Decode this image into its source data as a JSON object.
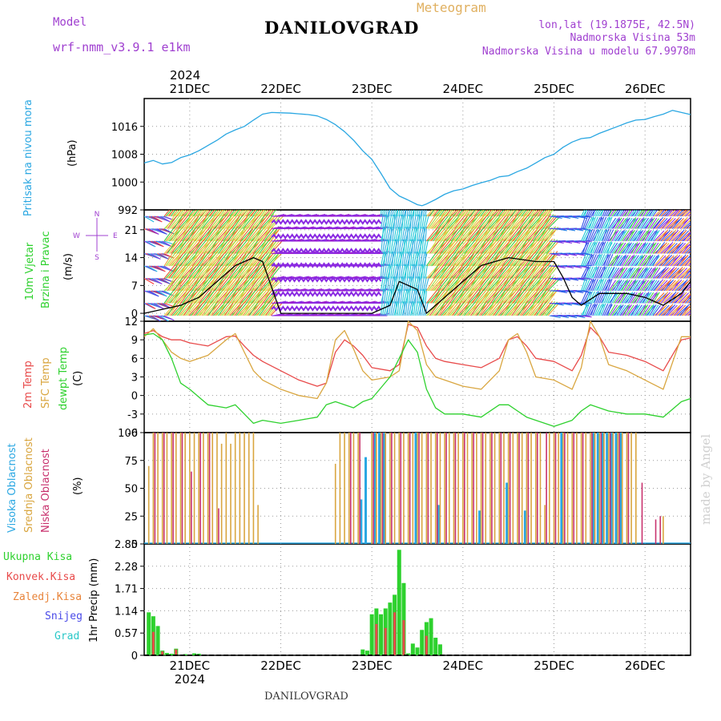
{
  "header": {
    "model_label": "Model",
    "model_name": "wrf-nmm_v3.9.1 e1km",
    "title": "Meteogram",
    "city": "DANILOVGRAD",
    "lonlat": "lon,lat (19.1875E, 42.5N)",
    "elevation": "Nadmorska Visina 53m",
    "model_elevation": "Nadmorska Visina u modelu 67.9978m",
    "watermark": "made by Angel",
    "city_bottom": "DANILOVGRAD"
  },
  "colors": {
    "pressure": "#2aa7e2",
    "temp2m": "#e84a4a",
    "sfc": "#d9a640",
    "dewpt": "#2ed12e",
    "cloud_high": "#2aa7e2",
    "cloud_mid": "#d9a640",
    "cloud_low": "#c8326e",
    "precip_total": "#2ed12e",
    "precip_conv": "#e84a4a",
    "precip_frozen": "#e8843a",
    "precip_snow": "#4a4ae8",
    "precip_hail": "#2ac8c8"
  },
  "chart_data": [
    {
      "type": "line",
      "panel": "pressure",
      "y_title": "Pritisak na nivou mora",
      "unit_label": "(hPa)",
      "x_date_year_top": "2024",
      "x_dates": [
        "21DEC",
        "22DEC",
        "23DEC",
        "24DEC",
        "25DEC",
        "26DEC"
      ],
      "x_range_days": [
        20.5,
        26.5
      ],
      "ylim": [
        992,
        1024
      ],
      "yticks": [
        "992",
        "1000",
        "1008",
        "1016"
      ],
      "x": [
        20.5,
        20.6,
        20.7,
        20.8,
        20.9,
        21.0,
        21.1,
        21.2,
        21.3,
        21.4,
        21.5,
        21.6,
        21.7,
        21.8,
        21.9,
        22.0,
        22.1,
        22.2,
        22.3,
        22.4,
        22.5,
        22.6,
        22.7,
        22.8,
        22.9,
        23.0,
        23.1,
        23.2,
        23.3,
        23.4,
        23.5,
        23.55,
        23.6,
        23.7,
        23.8,
        23.9,
        24.0,
        24.1,
        24.2,
        24.3,
        24.4,
        24.5,
        24.6,
        24.7,
        24.8,
        24.9,
        25.0,
        25.1,
        25.2,
        25.3,
        25.4,
        25.5,
        25.6,
        25.7,
        25.8,
        25.9,
        26.0,
        26.1,
        26.2,
        26.3,
        26.4,
        26.5
      ],
      "values": [
        1005.5,
        1006.2,
        1005.2,
        1005.6,
        1007.0,
        1007.8,
        1009.0,
        1010.5,
        1012.0,
        1013.8,
        1015.0,
        1016.0,
        1017.8,
        1019.5,
        1020.0,
        1019.9,
        1019.8,
        1019.6,
        1019.4,
        1019.0,
        1018.0,
        1016.5,
        1014.5,
        1012.0,
        1009.0,
        1006.5,
        1002.5,
        998.2,
        996.0,
        994.8,
        993.5,
        993.2,
        993.7,
        995.0,
        996.5,
        997.5,
        998.0,
        999.0,
        999.8,
        1000.5,
        1001.5,
        1001.8,
        1003.0,
        1004.0,
        1005.5,
        1007.0,
        1008.0,
        1010.0,
        1011.5,
        1012.5,
        1012.8,
        1014.0,
        1015.0,
        1016.0,
        1017.0,
        1017.8,
        1018.0,
        1018.8,
        1019.5,
        1020.6,
        1020.0,
        1019.4
      ]
    },
    {
      "type": "line",
      "panel": "wind",
      "y_title": [
        "10m Vjetar",
        "Brzina i Pravac"
      ],
      "unit_label": "(m/s)",
      "compass": {
        "n": "N",
        "s": "S",
        "e": "E",
        "w": "W"
      },
      "ylim": [
        -2,
        26
      ],
      "yticks": [
        "0",
        "7",
        "14",
        "21"
      ],
      "x": [
        20.5,
        20.7,
        20.9,
        21.1,
        21.3,
        21.5,
        21.7,
        21.8,
        22.0,
        22.5,
        23.0,
        23.2,
        23.3,
        23.5,
        23.6,
        23.7,
        23.9,
        24.2,
        24.5,
        24.8,
        25.0,
        25.1,
        25.2,
        25.3,
        25.5,
        25.8,
        26.0,
        26.2,
        26.4,
        26.5
      ],
      "values": [
        0,
        1,
        2,
        4,
        8,
        12,
        14,
        13,
        0,
        0,
        0,
        2,
        8,
        6,
        0,
        2,
        6,
        12,
        14,
        13,
        13,
        9,
        4,
        2,
        5,
        5,
        4,
        2,
        5,
        8
      ]
    },
    {
      "type": "line",
      "panel": "temperature",
      "y_title": [
        "2m Temp",
        "SFC Temp",
        "dewpt Temp"
      ],
      "unit_label": "(C)",
      "ylim": [
        -6,
        12
      ],
      "yticks": [
        "-6",
        "-3",
        "0",
        "3",
        "6",
        "9",
        "12"
      ],
      "series": [
        {
          "name": "2m Temp",
          "x": [
            20.5,
            20.6,
            20.7,
            20.8,
            20.9,
            21.0,
            21.2,
            21.4,
            21.5,
            21.6,
            21.7,
            21.8,
            22.0,
            22.2,
            22.4,
            22.5,
            22.6,
            22.7,
            22.8,
            22.9,
            23.0,
            23.2,
            23.3,
            23.4,
            23.5,
            23.6,
            23.7,
            23.8,
            24.0,
            24.2,
            24.4,
            24.5,
            24.6,
            24.7,
            24.8,
            25.0,
            25.2,
            25.3,
            25.4,
            25.5,
            25.6,
            25.8,
            26.0,
            26.2,
            26.4,
            26.5
          ],
          "values": [
            10.0,
            10.5,
            9.5,
            9.0,
            9.0,
            8.5,
            8.0,
            9.5,
            9.6,
            8.0,
            6.5,
            5.5,
            4.0,
            2.5,
            1.5,
            2.0,
            7.0,
            9.0,
            8.0,
            6.5,
            4.5,
            4.0,
            5.0,
            11.5,
            11.0,
            8.0,
            6.0,
            5.5,
            5.0,
            4.5,
            6.0,
            9.0,
            9.5,
            8.0,
            6.0,
            5.5,
            4.0,
            6.5,
            11.0,
            9.5,
            7.0,
            6.5,
            5.5,
            4.0,
            9.0,
            9.3
          ]
        },
        {
          "name": "SFC Temp",
          "x": [
            20.5,
            20.6,
            20.7,
            20.8,
            20.9,
            21.0,
            21.2,
            21.4,
            21.5,
            21.6,
            21.7,
            21.8,
            22.0,
            22.2,
            22.4,
            22.5,
            22.6,
            22.7,
            22.8,
            22.9,
            23.0,
            23.2,
            23.3,
            23.4,
            23.5,
            23.6,
            23.7,
            23.8,
            24.0,
            24.2,
            24.4,
            24.5,
            24.6,
            24.7,
            24.8,
            25.0,
            25.2,
            25.3,
            25.4,
            25.5,
            25.6,
            25.8,
            26.0,
            26.2,
            26.4,
            26.5
          ],
          "values": [
            9.5,
            10.8,
            9.0,
            7.0,
            6.0,
            5.5,
            6.5,
            9.0,
            10.0,
            7.0,
            4.0,
            2.5,
            1.0,
            0.0,
            -0.5,
            2.0,
            9.0,
            10.5,
            7.5,
            4.0,
            2.5,
            3.0,
            4.0,
            12.0,
            10.5,
            5.0,
            3.0,
            2.5,
            1.5,
            1.0,
            4.0,
            9.0,
            10.0,
            7.0,
            3.0,
            2.5,
            1.0,
            4.5,
            12.0,
            9.5,
            5.0,
            4.0,
            2.5,
            1.0,
            9.5,
            9.5
          ]
        },
        {
          "name": "dewpt Temp",
          "x": [
            20.5,
            20.6,
            20.7,
            20.8,
            20.9,
            21.0,
            21.2,
            21.4,
            21.5,
            21.6,
            21.7,
            21.8,
            22.0,
            22.2,
            22.4,
            22.5,
            22.6,
            22.7,
            22.8,
            22.9,
            23.0,
            23.2,
            23.3,
            23.4,
            23.5,
            23.6,
            23.7,
            23.8,
            24.0,
            24.2,
            24.4,
            24.5,
            24.6,
            24.7,
            24.8,
            25.0,
            25.2,
            25.3,
            25.4,
            25.5,
            25.6,
            25.8,
            26.0,
            26.2,
            26.4,
            26.5
          ],
          "values": [
            9.8,
            10.0,
            9.0,
            6.0,
            2.0,
            1.0,
            -1.5,
            -2.0,
            -1.5,
            -3.0,
            -4.5,
            -4.0,
            -4.5,
            -4.0,
            -3.5,
            -1.5,
            -1.0,
            -1.5,
            -2.0,
            -1.0,
            -0.5,
            3.0,
            6.0,
            9.0,
            7.0,
            1.0,
            -2.0,
            -3.0,
            -3.0,
            -3.5,
            -1.5,
            -1.5,
            -2.5,
            -3.5,
            -4.0,
            -5.0,
            -4.0,
            -2.5,
            -1.5,
            -2.0,
            -2.5,
            -3.0,
            -3.0,
            -3.5,
            -1.0,
            -0.5
          ]
        }
      ]
    },
    {
      "type": "bar",
      "panel": "clouds",
      "y_title": [
        "Visoka Oblacnost",
        "Srednja Oblacnost",
        "Niska Oblacnost"
      ],
      "unit_label": "(%)",
      "ylim": [
        0,
        100
      ],
      "yticks": [
        "0",
        "25",
        "50",
        "75",
        "100"
      ],
      "series": [
        {
          "name": "Visoka Oblacnost",
          "x": [
            22.9,
            22.95,
            23.05,
            23.1,
            23.15,
            23.5,
            23.75,
            24.2,
            24.5,
            24.7,
            25.1,
            25.45,
            25.5,
            25.55,
            25.6,
            25.65,
            25.7,
            25.75
          ],
          "values": [
            40,
            78,
            100,
            100,
            100,
            100,
            35,
            30,
            55,
            30,
            100,
            100,
            100,
            100,
            100,
            100,
            100,
            100
          ]
        },
        {
          "name": "Srednja Oblacnost",
          "x": [
            20.55,
            20.6,
            20.65,
            20.7,
            20.75,
            20.8,
            20.85,
            20.9,
            20.95,
            21.0,
            21.05,
            21.1,
            21.15,
            21.2,
            21.25,
            21.3,
            21.35,
            21.4,
            21.45,
            21.5,
            21.55,
            21.6,
            21.65,
            21.7,
            21.75,
            22.6,
            22.65,
            22.7,
            22.75,
            22.8,
            22.85,
            23.0,
            23.05,
            23.1,
            23.15,
            23.2,
            23.25,
            23.3,
            23.35,
            23.4,
            23.45,
            23.5,
            23.55,
            23.6,
            23.65,
            23.7,
            23.75,
            23.8,
            23.85,
            23.9,
            23.95,
            24.0,
            24.05,
            24.1,
            24.15,
            24.2,
            24.25,
            24.3,
            24.35,
            24.4,
            24.45,
            24.5,
            24.55,
            24.6,
            24.65,
            24.7,
            24.75,
            24.8,
            24.85,
            24.9,
            24.95,
            25.0,
            25.05,
            25.1,
            25.15,
            25.2,
            25.25,
            25.3,
            25.35,
            25.4,
            25.45,
            25.5,
            25.55,
            25.6,
            25.65,
            25.7,
            25.75,
            25.8,
            25.85,
            25.9,
            26.2
          ],
          "values": [
            70,
            100,
            100,
            100,
            100,
            100,
            100,
            100,
            100,
            100,
            100,
            100,
            100,
            100,
            100,
            100,
            90,
            100,
            90,
            100,
            100,
            100,
            100,
            100,
            35,
            72,
            100,
            100,
            100,
            100,
            100,
            100,
            100,
            100,
            100,
            100,
            100,
            100,
            100,
            100,
            100,
            100,
            100,
            100,
            100,
            100,
            100,
            100,
            100,
            100,
            100,
            100,
            100,
            100,
            100,
            100,
            100,
            100,
            100,
            100,
            100,
            100,
            100,
            100,
            100,
            100,
            100,
            100,
            100,
            35,
            100,
            100,
            100,
            100,
            100,
            100,
            100,
            100,
            100,
            100,
            100,
            100,
            100,
            100,
            100,
            100,
            100,
            100,
            100,
            100,
            25
          ]
        },
        {
          "name": "Niska Oblacnost",
          "x": [
            20.6,
            20.7,
            20.8,
            20.9,
            21.0,
            21.1,
            21.2,
            21.3,
            22.75,
            22.85,
            23.0,
            23.1,
            23.2,
            23.3,
            23.4,
            23.5,
            23.6,
            23.7,
            23.8,
            23.9,
            24.0,
            24.1,
            24.2,
            24.3,
            24.4,
            24.5,
            24.6,
            24.7,
            24.8,
            24.9,
            25.0,
            25.1,
            25.2,
            25.3,
            25.4,
            25.5,
            25.6,
            25.7,
            25.8,
            25.95,
            26.1,
            26.15
          ],
          "values": [
            100,
            100,
            100,
            100,
            65,
            100,
            100,
            32,
            100,
            100,
            100,
            100,
            100,
            100,
            100,
            100,
            100,
            100,
            100,
            100,
            100,
            100,
            100,
            100,
            100,
            100,
            100,
            100,
            100,
            100,
            100,
            100,
            100,
            100,
            100,
            100,
            100,
            100,
            100,
            55,
            22,
            25
          ]
        }
      ]
    },
    {
      "type": "bar",
      "panel": "precip",
      "y_title": "1hr Precip (mm)",
      "x_date_year_bottom": "2024",
      "ylim": [
        0,
        2.85
      ],
      "yticks": [
        "0",
        "0.57",
        "1.14",
        "1.71",
        "2.28",
        "2.85"
      ],
      "series": [
        {
          "name": "Ukupna Kisa",
          "x": [
            20.55,
            20.6,
            20.65,
            20.7,
            20.75,
            20.8,
            20.85,
            20.9,
            20.95,
            21.05,
            21.1,
            22.9,
            22.95,
            23.0,
            23.05,
            23.1,
            23.15,
            23.2,
            23.25,
            23.3,
            23.35,
            23.4,
            23.45,
            23.5,
            23.55,
            23.6,
            23.65,
            23.7,
            23.75
          ],
          "values": [
            1.1,
            1.0,
            0.75,
            0.12,
            0.06,
            0.04,
            0.17,
            0.0,
            0.03,
            0.05,
            0.04,
            0.15,
            0.12,
            1.05,
            1.2,
            1.05,
            1.2,
            1.35,
            1.55,
            2.7,
            1.85,
            0.05,
            0.3,
            0.2,
            0.65,
            0.85,
            0.95,
            0.45,
            0.28
          ]
        },
        {
          "name": "Konvek.Kisa",
          "x": [
            20.6,
            20.7,
            20.85,
            23.05,
            23.15,
            23.25,
            23.35,
            23.6
          ],
          "values": [
            0.6,
            0.1,
            0.15,
            0.8,
            0.7,
            1.1,
            0.9,
            0.5
          ]
        }
      ],
      "legend": [
        "Ukupna Kisa",
        "Konvek.Kisa",
        "Zaledj.Kisa",
        "Snijeg",
        "Grad"
      ]
    }
  ]
}
